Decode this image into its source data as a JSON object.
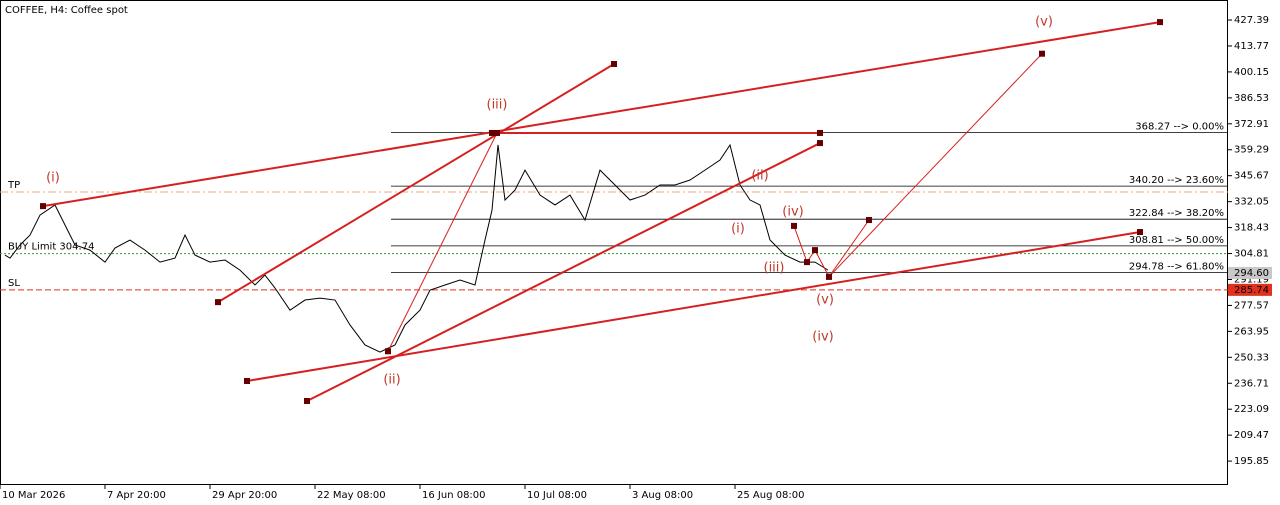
{
  "chart_data": {
    "type": "line",
    "title": "COFFEE, H4:  Coffee spot",
    "color": "#000000",
    "xlim": [
      0,
      245.6
    ],
    "ylim": [
      183.3,
      437.9
    ],
    "xticks": [
      {
        "value": 0,
        "label": "10 Mar 2026"
      },
      {
        "value": 21,
        "label": "7 Apr 20:00"
      },
      {
        "value": 42,
        "label": "29 Apr 20:00"
      },
      {
        "value": 63,
        "label": "22 May 08:00"
      },
      {
        "value": 84,
        "label": "16 Jun 08:00"
      },
      {
        "value": 105,
        "label": "10 Jul 08:00"
      },
      {
        "value": 126,
        "label": "3 Aug 08:00"
      },
      {
        "value": 147,
        "label": "25 Aug 08:00"
      }
    ],
    "yticks": [
      427.39,
      413.77,
      400.15,
      386.53,
      372.91,
      359.29,
      345.67,
      332.05,
      318.43,
      304.81,
      291.19,
      277.57,
      263.95,
      250.33,
      236.71,
      223.09,
      209.47,
      195.85
    ],
    "x": [
      1,
      2,
      4,
      6,
      8,
      11,
      13,
      15,
      18,
      21,
      23,
      26,
      29,
      32,
      35,
      37,
      39,
      42,
      45,
      48,
      51,
      53,
      55,
      58,
      61,
      64,
      67,
      70,
      73,
      76,
      79,
      81,
      84,
      86,
      89,
      92,
      95,
      97,
      98.4,
      99.6,
      101,
      103,
      105,
      108,
      111,
      114,
      117,
      120,
      123,
      126,
      129,
      132,
      135,
      138,
      141,
      144,
      146,
      148,
      150,
      152,
      154,
      157,
      160,
      163,
      165.6
    ],
    "values": [
      304.0,
      302.4,
      309.3,
      314.5,
      325.0,
      330.3,
      319.8,
      309.3,
      306.6,
      300.3,
      307.7,
      311.9,
      306.6,
      300.3,
      302.4,
      314.5,
      304.0,
      300.3,
      301.4,
      296.1,
      288.3,
      293.5,
      286.7,
      275.1,
      280.4,
      281.4,
      280.4,
      267.3,
      256.8,
      253.1,
      256.8,
      267.3,
      275.1,
      285.6,
      288.3,
      290.9,
      288.3,
      311.9,
      327.6,
      361.8,
      332.9,
      338.1,
      348.6,
      335.5,
      330.3,
      335.5,
      322.4,
      348.6,
      340.8,
      332.9,
      335.5,
      340.8,
      340.8,
      343.4,
      348.6,
      353.9,
      361.8,
      340.8,
      332.9,
      330.3,
      311.9,
      304.0,
      300.3,
      300.3,
      296.1
    ],
    "fib_levels": [
      {
        "value": 368.27,
        "label": "368.27 --> 0.00%"
      },
      {
        "value": 340.2,
        "label": "340.20 --> 23.60%"
      },
      {
        "value": 322.84,
        "label": "322.84 --> 38.20%"
      },
      {
        "value": 308.81,
        "label": "308.81 --> 50.00%"
      },
      {
        "value": 294.78,
        "label": "294.78 --> 61.80%"
      }
    ],
    "fib_color": "#000000",
    "levels": [
      {
        "label": "TP",
        "value": 337.1,
        "color": "#f4a582"
      },
      {
        "label": "SL",
        "value": 285.74,
        "color": "#e0301e"
      },
      {
        "label": "BUY Limit 304.74",
        "value": 304.74,
        "color": "#3a9a3a"
      }
    ],
    "price_boxes": [
      {
        "value": 294.6,
        "label": "294.60",
        "color": "#c8c8c8"
      },
      {
        "value": 285.74,
        "label": "285.74",
        "color": "#e0301e"
      }
    ],
    "trend_color": "#d62020",
    "trendlines": [
      {
        "x": [
          8.6,
          232
        ],
        "values": [
          329.7,
          426.3
        ]
      },
      {
        "x": [
          43.6,
          122.8
        ],
        "values": [
          279.3,
          404.3
        ]
      },
      {
        "x": [
          61.4,
          164
        ],
        "values": [
          227.4,
          362.8
        ]
      },
      {
        "x": [
          49.4,
          228
        ],
        "values": [
          237.9,
          316.1
        ]
      },
      {
        "x": [
          98.4,
          164
        ],
        "values": [
          368.1,
          368.1
        ]
      }
    ],
    "projections": [
      {
        "x": [
          77.6,
          99.4
        ],
        "values": [
          253.5,
          368.1
        ]
      },
      {
        "x": [
          158.8,
          161.4,
          163,
          165.8,
          173.8
        ],
        "values": [
          319.3,
          300.3,
          306.6,
          292.6,
          322.4
        ]
      },
      {
        "x": [
          165.8,
          208.4
        ],
        "values": [
          292.6,
          409.7
        ]
      }
    ],
    "wave_labels": [
      "(i)",
      "(iii)",
      "(ii)",
      "(ii)",
      "(i)",
      "(iv)",
      "(iii)",
      "(v)",
      "(iv)",
      "(v)"
    ]
  }
}
